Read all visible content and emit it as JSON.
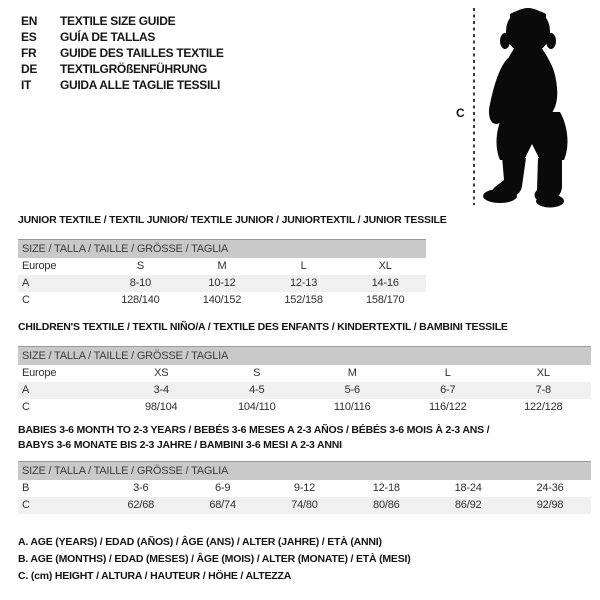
{
  "legend": {
    "items": [
      {
        "code": "EN",
        "text": "TEXTILE SIZE GUIDE"
      },
      {
        "code": "ES",
        "text": "GUÍA DE TALLAS"
      },
      {
        "code": "FR",
        "text": "GUIDE DES TAILLES TEXTILE"
      },
      {
        "code": "DE",
        "text": "TEXTILGRÖßENFÜHRUNG"
      },
      {
        "code": "IT",
        "text": "GUIDA ALLE TAGLIE TESSILI"
      }
    ]
  },
  "figure": {
    "measure_label": "C",
    "silhouette": "baby-standing-silhouette"
  },
  "sections": [
    {
      "title": "JUNIOR TEXTILE / TEXTIL JUNIOR/ TEXTILE JUNIOR / JUNIORTEXTIL / JUNIOR TESSILE",
      "size_header": "SIZE / TALLA / TAILLE / GRÖSSE / TAGLIA",
      "rows": [
        {
          "label": "Europe",
          "values": [
            "S",
            "M",
            "L",
            "XL"
          ],
          "striped": false
        },
        {
          "label": "A",
          "values": [
            "8-10",
            "10-12",
            "12-13",
            "14-16"
          ],
          "striped": true
        },
        {
          "label": "C",
          "values": [
            "128/140",
            "140/152",
            "152/158",
            "158/170"
          ],
          "striped": false
        }
      ]
    },
    {
      "title": "CHILDREN'S TEXTILE / TEXTIL NIÑO/A / TEXTILE DES ENFANTS / KINDERTEXTIL / BAMBINI TESSILE",
      "size_header": "SIZE / TALLA / TAILLE / GRÖSSE / TAGLIA",
      "rows": [
        {
          "label": "Europe",
          "values": [
            "XS",
            "S",
            "M",
            "L",
            "XL"
          ],
          "striped": false
        },
        {
          "label": "A",
          "values": [
            "3-4",
            "4-5",
            "5-6",
            "6-7",
            "7-8"
          ],
          "striped": true
        },
        {
          "label": "C",
          "values": [
            "98/104",
            "104/110",
            "110/116",
            "116/122",
            "122/128"
          ],
          "striped": false
        }
      ]
    },
    {
      "title": "BABIES 3-6 MONTH TO 2-3 YEARS / BEBÉS 3-6 MESES A 2-3 AÑOS / BÉBÉS 3-6 MOIS À 2-3 ANS / BABYS 3-6 MONATE BIS 2-3 JAHRE / BAMBINI 3-6 MESI A 2-3 ANNI",
      "size_header": "SIZE / TALLA / TAILLE / GRÖSSE / TAGLIA",
      "rows": [
        {
          "label": "B",
          "values": [
            "3-6",
            "6-9",
            "9-12",
            "12-18",
            "18-24",
            "24-36"
          ],
          "striped": false
        },
        {
          "label": "C",
          "values": [
            "62/68",
            "68/74",
            "74/80",
            "80/86",
            "86/92",
            "92/98"
          ],
          "striped": true
        }
      ]
    }
  ],
  "notes": [
    "A. AGE (YEARS) / EDAD (AÑOS) / ÂGE (ANS) / ALTER (JAHRE) / ETÀ (ANNI)",
    "B. AGE (MONTHS) / EDAD (MESES) / ÂGE (MOIS) / ALTER (MONATE) / ETÀ (MESI)",
    "C. (cm) HEIGHT / ALTURA / HAUTEUR / HÖHE / ALTEZZA"
  ],
  "colors": {
    "header_bar": "#c9c9c9",
    "header_bar_border": "#9b9b9b",
    "stripe": "#f0f0f0",
    "text": "#2f2f2f",
    "silhouette": "#0a0a0a"
  }
}
